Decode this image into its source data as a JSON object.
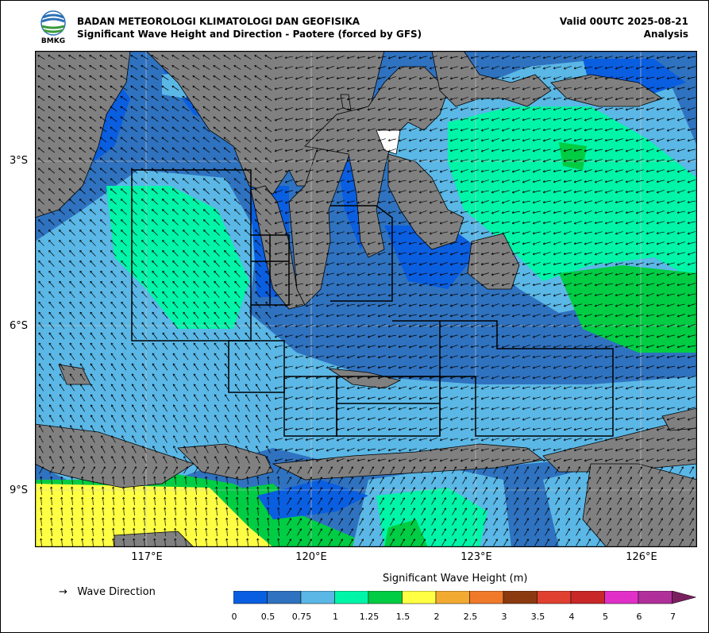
{
  "header": {
    "org": "BADAN METEOROLOGI KLIMATOLOGI DAN GEOFISIKA",
    "subtitle": "Significant Wave Height and Direction - Paotere (forced by GFS)",
    "valid": "Valid 00UTC 2025-08-21",
    "mode": "Analysis",
    "logo_text": "BMKG"
  },
  "axes": {
    "lat_labels": [
      "3°S",
      "6°S",
      "9°S"
    ],
    "lon_labels": [
      "117°E",
      "120°E",
      "123°E",
      "126°E"
    ]
  },
  "legend": {
    "arrow_symbol": "→",
    "direction_label": "Wave Direction",
    "colorbar_title": "Significant Wave Height (m)",
    "ticks": [
      "0",
      "0.5",
      "0.75",
      "1",
      "1.25",
      "1.5",
      "2",
      "2.5",
      "3",
      "3.5",
      "4",
      "5",
      "6",
      "7"
    ],
    "colors": [
      "#0a5ee0",
      "#2f72bf",
      "#5ab7e6",
      "#00f5a8",
      "#00cc44",
      "#ffff44",
      "#f2aa33",
      "#f07a2a",
      "#8b3a0f",
      "#e04030",
      "#c82828",
      "#e030c8",
      "#b0309a",
      "#7a2060"
    ]
  },
  "map_colors": {
    "land": "#808080",
    "sea_low": "#0a5ee0",
    "sea_mid": "#2f72bf",
    "sea_lightblue": "#5ab7e6",
    "sea_mint": "#00f5a8",
    "sea_green": "#00cc44",
    "sea_yellow": "#ffff44"
  }
}
